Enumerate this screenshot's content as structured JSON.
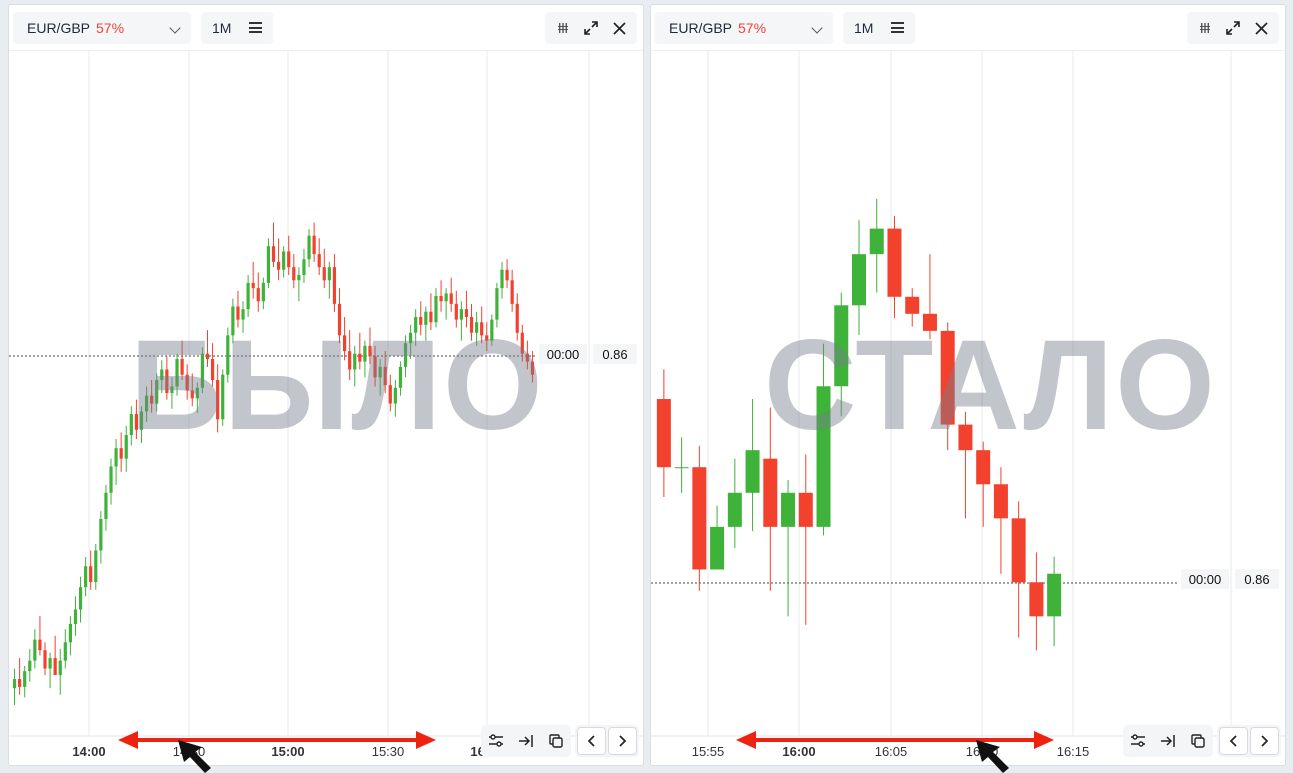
{
  "colors": {
    "up": "#3fb23a",
    "down": "#f2412c",
    "accent_pct": "#f0433b",
    "arrow": "#ee2210",
    "grid": "#e6e8ec"
  },
  "panels": [
    {
      "id": "left",
      "symbol": "EUR/GBP",
      "percent": "57%",
      "timeframe": "1M",
      "time_tag": "00:00",
      "price_tag": "0.86",
      "watermark": "БЫЛО",
      "xaxis": [
        {
          "label": "14:00",
          "bold": true
        },
        {
          "label": "14:30",
          "bold": false
        },
        {
          "label": "15:00",
          "bold": true
        },
        {
          "label": "15:30",
          "bold": false
        },
        {
          "label": "16:00",
          "bold": true
        }
      ]
    },
    {
      "id": "right",
      "symbol": "EUR/GBP",
      "percent": "57%",
      "timeframe": "1M",
      "time_tag": "00:00",
      "price_tag": "0.86",
      "watermark": "СТАЛО",
      "xaxis": [
        {
          "label": "15:55",
          "bold": false
        },
        {
          "label": "16:00",
          "bold": true
        },
        {
          "label": "16:05",
          "bold": false
        },
        {
          "label": "16:10",
          "bold": false
        },
        {
          "label": "16:15",
          "bold": false
        }
      ]
    }
  ],
  "icons": {
    "grip": "grip-icon",
    "expand": "expand-icon",
    "close": "close-icon",
    "settings": "sliders-icon",
    "jump": "jump-to-end-icon",
    "copy": "copy-icon",
    "prev": "chevron-left-icon",
    "next": "chevron-right-icon"
  },
  "chart_data": [
    {
      "type": "candlestick",
      "panel": "left",
      "x_ticks": [
        "14:00",
        "14:30",
        "15:00",
        "15:30",
        "16:00"
      ],
      "interval": "1 minute",
      "y_tick_labels": [
        "0.86"
      ],
      "last_value_label": "0.86",
      "candles_ohlc": [
        [
          0.84975,
          0.8499,
          0.84962,
          0.84982
        ],
        [
          0.84982,
          0.84998,
          0.8497,
          0.84976
        ],
        [
          0.84976,
          0.84992,
          0.84968,
          0.84988
        ],
        [
          0.84988,
          0.85005,
          0.8498,
          0.84996
        ],
        [
          0.84996,
          0.8502,
          0.8499,
          0.85012
        ],
        [
          0.85012,
          0.8503,
          0.85,
          0.85004
        ],
        [
          0.85004,
          0.8501,
          0.84985,
          0.8499
        ],
        [
          0.8499,
          0.85002,
          0.84975,
          0.84998
        ],
        [
          0.84998,
          0.85015,
          0.8499,
          0.84985
        ],
        [
          0.84985,
          0.85005,
          0.8497,
          0.84996
        ],
        [
          0.84996,
          0.8502,
          0.8499,
          0.8501
        ],
        [
          0.8501,
          0.8503,
          0.85,
          0.85024
        ],
        [
          0.85024,
          0.85045,
          0.85015,
          0.85035
        ],
        [
          0.85035,
          0.8506,
          0.85025,
          0.85052
        ],
        [
          0.85052,
          0.85075,
          0.85045,
          0.85068
        ],
        [
          0.85068,
          0.8508,
          0.8505,
          0.85056
        ],
        [
          0.85056,
          0.85085,
          0.8505,
          0.8508
        ],
        [
          0.8508,
          0.8511,
          0.8507,
          0.85104
        ],
        [
          0.85104,
          0.8513,
          0.85095,
          0.85124
        ],
        [
          0.85124,
          0.8515,
          0.85115,
          0.85144
        ],
        [
          0.85144,
          0.85165,
          0.8513,
          0.85158
        ],
        [
          0.85158,
          0.8517,
          0.8514,
          0.8515
        ],
        [
          0.8515,
          0.85175,
          0.8514,
          0.85168
        ],
        [
          0.85168,
          0.8519,
          0.8516,
          0.85184
        ],
        [
          0.85184,
          0.85195,
          0.85165,
          0.85172
        ],
        [
          0.85172,
          0.8519,
          0.85162,
          0.85186
        ],
        [
          0.85186,
          0.85205,
          0.85178,
          0.85198
        ],
        [
          0.85198,
          0.8521,
          0.85185,
          0.85192
        ],
        [
          0.85192,
          0.85215,
          0.85186,
          0.8521
        ],
        [
          0.8521,
          0.85225,
          0.852,
          0.85218
        ],
        [
          0.85218,
          0.85228,
          0.85195,
          0.852
        ],
        [
          0.852,
          0.85212,
          0.85188,
          0.85205
        ],
        [
          0.85205,
          0.8523,
          0.85198,
          0.85226
        ],
        [
          0.85226,
          0.8524,
          0.8521,
          0.85214
        ],
        [
          0.85214,
          0.85222,
          0.85195,
          0.85202
        ],
        [
          0.85202,
          0.85215,
          0.8519,
          0.85196
        ],
        [
          0.85196,
          0.85208,
          0.85185,
          0.85204
        ],
        [
          0.85204,
          0.85235,
          0.852,
          0.8523
        ],
        [
          0.8523,
          0.85248,
          0.8522,
          0.85226
        ],
        [
          0.85226,
          0.85238,
          0.85205,
          0.8521
        ],
        [
          0.8521,
          0.85222,
          0.8517,
          0.8518
        ],
        [
          0.8518,
          0.85218,
          0.85175,
          0.85214
        ],
        [
          0.85214,
          0.8525,
          0.85208,
          0.85244
        ],
        [
          0.85244,
          0.85272,
          0.85238,
          0.85266
        ],
        [
          0.85266,
          0.85278,
          0.8525,
          0.85256
        ],
        [
          0.85256,
          0.8527,
          0.85246,
          0.85264
        ],
        [
          0.85264,
          0.8529,
          0.85258,
          0.85284
        ],
        [
          0.85284,
          0.853,
          0.85272,
          0.8528
        ],
        [
          0.8528,
          0.85292,
          0.85262,
          0.8527
        ],
        [
          0.8527,
          0.85288,
          0.85264,
          0.85284
        ],
        [
          0.85284,
          0.85318,
          0.8528,
          0.85312
        ],
        [
          0.85312,
          0.8533,
          0.85296,
          0.853
        ],
        [
          0.853,
          0.85318,
          0.85286,
          0.85294
        ],
        [
          0.85294,
          0.85312,
          0.85288,
          0.85308
        ],
        [
          0.85308,
          0.8532,
          0.8529,
          0.85296
        ],
        [
          0.85296,
          0.85306,
          0.8528,
          0.85286
        ],
        [
          0.85286,
          0.85296,
          0.8527,
          0.8529
        ],
        [
          0.8529,
          0.8531,
          0.85284,
          0.85302
        ],
        [
          0.85302,
          0.85325,
          0.85296,
          0.8532
        ],
        [
          0.8532,
          0.8533,
          0.853,
          0.85306
        ],
        [
          0.85306,
          0.85318,
          0.8529,
          0.85296
        ],
        [
          0.85296,
          0.8531,
          0.8528,
          0.85286
        ],
        [
          0.85286,
          0.853,
          0.85272,
          0.85296
        ],
        [
          0.85296,
          0.85306,
          0.85262,
          0.85268
        ],
        [
          0.85268,
          0.8528,
          0.85238,
          0.85244
        ],
        [
          0.85244,
          0.85258,
          0.85225,
          0.85232
        ],
        [
          0.85232,
          0.85248,
          0.8521,
          0.85218
        ],
        [
          0.85218,
          0.85236,
          0.85205,
          0.8523
        ],
        [
          0.8523,
          0.85246,
          0.85218,
          0.85224
        ],
        [
          0.85224,
          0.8524,
          0.85212,
          0.85236
        ],
        [
          0.85236,
          0.8525,
          0.85222,
          0.85228
        ],
        [
          0.85228,
          0.85236,
          0.85205,
          0.85212
        ],
        [
          0.85212,
          0.85226,
          0.85198,
          0.8522
        ],
        [
          0.8522,
          0.85232,
          0.852,
          0.85206
        ],
        [
          0.85206,
          0.85214,
          0.85186,
          0.85192
        ],
        [
          0.85192,
          0.8521,
          0.85182,
          0.85204
        ],
        [
          0.85204,
          0.85224,
          0.85198,
          0.8522
        ],
        [
          0.8522,
          0.85244,
          0.85212,
          0.85238
        ],
        [
          0.85238,
          0.85252,
          0.85226,
          0.85246
        ],
        [
          0.85246,
          0.85264,
          0.85236,
          0.85258
        ],
        [
          0.85258,
          0.8527,
          0.85244,
          0.85252
        ],
        [
          0.85252,
          0.85266,
          0.8524,
          0.85262
        ],
        [
          0.85262,
          0.85276,
          0.85248,
          0.85254
        ],
        [
          0.85254,
          0.8528,
          0.8525,
          0.85274
        ],
        [
          0.85274,
          0.85286,
          0.85262,
          0.8527
        ],
        [
          0.8527,
          0.8528,
          0.85256,
          0.85276
        ],
        [
          0.85276,
          0.85288,
          0.85262,
          0.85268
        ],
        [
          0.85268,
          0.85278,
          0.8525,
          0.85256
        ],
        [
          0.85256,
          0.8527,
          0.8524,
          0.85264
        ],
        [
          0.85264,
          0.85278,
          0.8525,
          0.85258
        ],
        [
          0.85258,
          0.85268,
          0.8524,
          0.85246
        ],
        [
          0.85246,
          0.85262,
          0.85236,
          0.85254
        ],
        [
          0.85254,
          0.85266,
          0.85238,
          0.85244
        ],
        [
          0.85244,
          0.85254,
          0.85232,
          0.8524
        ],
        [
          0.8524,
          0.8526,
          0.85236,
          0.85256
        ],
        [
          0.85256,
          0.85284,
          0.8525,
          0.8528
        ],
        [
          0.8528,
          0.853,
          0.85272,
          0.85294
        ],
        [
          0.85294,
          0.85302,
          0.8528,
          0.85286
        ],
        [
          0.85286,
          0.85294,
          0.85262,
          0.85268
        ],
        [
          0.85268,
          0.85276,
          0.8524,
          0.85246
        ],
        [
          0.85246,
          0.85252,
          0.85224,
          0.8523
        ],
        [
          0.8523,
          0.8524,
          0.85218,
          0.85224
        ],
        [
          0.85224,
          0.85232,
          0.85208,
          0.85214
        ]
      ]
    },
    {
      "type": "candlestick",
      "panel": "right",
      "x_ticks": [
        "15:55",
        "16:00",
        "16:05",
        "16:10",
        "16:15"
      ],
      "interval": "1 minute",
      "y_tick_labels": [
        "0.86"
      ],
      "last_value_label": "0.86",
      "candles_ohlc": [
        [
          0.85265,
          0.85272,
          0.85242,
          0.85249
        ],
        [
          0.85249,
          0.85256,
          0.85243,
          0.85249
        ],
        [
          0.85249,
          0.85254,
          0.8522,
          0.85225
        ],
        [
          0.85225,
          0.8524,
          0.85225,
          0.85235
        ],
        [
          0.85235,
          0.85251,
          0.8523,
          0.85243
        ],
        [
          0.85243,
          0.85265,
          0.85234,
          0.85253
        ],
        [
          0.85251,
          0.85263,
          0.8522,
          0.85235
        ],
        [
          0.85235,
          0.85246,
          0.85214,
          0.85243
        ],
        [
          0.85243,
          0.85252,
          0.85212,
          0.85235
        ],
        [
          0.85235,
          0.85278,
          0.85233,
          0.85268
        ],
        [
          0.85268,
          0.8529,
          0.85261,
          0.85287
        ],
        [
          0.85287,
          0.85307,
          0.8528,
          0.85299
        ],
        [
          0.85299,
          0.85312,
          0.8529,
          0.85305
        ],
        [
          0.85305,
          0.85308,
          0.85284,
          0.85289
        ],
        [
          0.85289,
          0.85291,
          0.85282,
          0.85285
        ],
        [
          0.85285,
          0.85299,
          0.85279,
          0.85281
        ],
        [
          0.85281,
          0.85283,
          0.85253,
          0.85259
        ],
        [
          0.85259,
          0.85262,
          0.85237,
          0.85253
        ],
        [
          0.85253,
          0.85255,
          0.85235,
          0.85245
        ],
        [
          0.85245,
          0.85249,
          0.85224,
          0.85237
        ],
        [
          0.85237,
          0.85241,
          0.85209,
          0.85222
        ],
        [
          0.85222,
          0.85229,
          0.85206,
          0.85214
        ],
        [
          0.85214,
          0.85228,
          0.85207,
          0.85224
        ]
      ]
    }
  ]
}
